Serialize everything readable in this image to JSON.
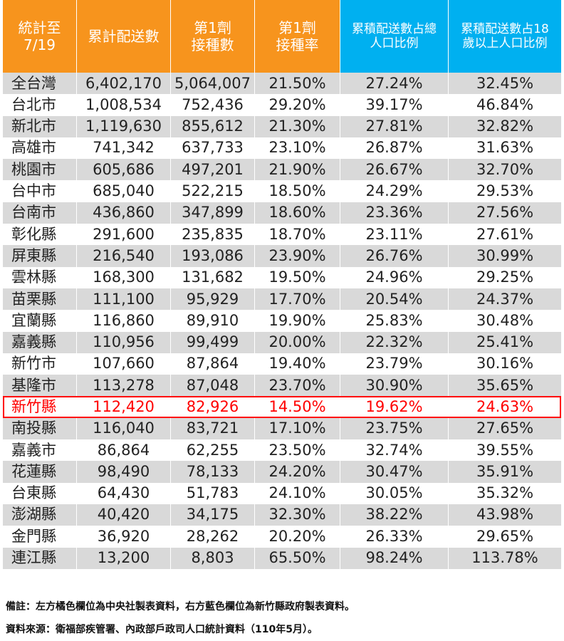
{
  "table": {
    "header": [
      "統計至\n7/19",
      "累計配送數",
      "第1劑\n接種數",
      "第1劑\n接種率",
      "累積配送數占總\n人口比例",
      "累積配送數占18\n歲以上人口比例"
    ],
    "rows": [
      [
        "全台灣",
        "6,402,170",
        "5,064,007",
        "21.50%",
        "27.24%",
        "32.45%"
      ],
      [
        "台北市",
        "1,008,534",
        "752,436",
        "29.20%",
        "39.17%",
        "46.84%"
      ],
      [
        "新北市",
        "1,119,630",
        "855,612",
        "21.30%",
        "27.81%",
        "32.82%"
      ],
      [
        "高雄市",
        "741,342",
        "637,733",
        "23.10%",
        "26.87%",
        "31.63%"
      ],
      [
        "桃園市",
        "605,686",
        "497,201",
        "21.90%",
        "26.67%",
        "32.70%"
      ],
      [
        "台中市",
        "685,040",
        "522,215",
        "18.50%",
        "24.29%",
        "29.53%"
      ],
      [
        "台南市",
        "436,860",
        "347,899",
        "18.60%",
        "23.36%",
        "27.56%"
      ],
      [
        "彰化縣",
        "291,600",
        "235,835",
        "18.70%",
        "23.11%",
        "27.61%"
      ],
      [
        "屏東縣",
        "216,540",
        "193,086",
        "23.90%",
        "26.76%",
        "30.99%"
      ],
      [
        "雲林縣",
        "168,300",
        "131,682",
        "19.50%",
        "24.96%",
        "29.25%"
      ],
      [
        "苗栗縣",
        "111,100",
        "95,929",
        "17.70%",
        "20.54%",
        "24.37%"
      ],
      [
        "宜蘭縣",
        "116,860",
        "89,910",
        "19.90%",
        "25.83%",
        "30.48%"
      ],
      [
        "嘉義縣",
        "110,956",
        "99,499",
        "20.00%",
        "22.32%",
        "25.41%"
      ],
      [
        "新竹市",
        "107,660",
        "87,864",
        "19.40%",
        "23.79%",
        "30.16%"
      ],
      [
        "基隆市",
        "113,278",
        "87,048",
        "23.70%",
        "30.90%",
        "35.65%"
      ],
      [
        "新竹縣",
        "112,420",
        "82,926",
        "14.50%",
        "19.62%",
        "24.63%"
      ],
      [
        "南投縣",
        "116,040",
        "83,721",
        "17.10%",
        "23.75%",
        "27.65%"
      ],
      [
        "嘉義市",
        "86,864",
        "62,255",
        "23.50%",
        "32.74%",
        "39.55%"
      ],
      [
        "花蓮縣",
        "98,490",
        "78,133",
        "24.20%",
        "30.47%",
        "35.91%"
      ],
      [
        "台東縣",
        "64,430",
        "51,783",
        "24.10%",
        "30.05%",
        "35.32%"
      ],
      [
        "澎湖縣",
        "40,420",
        "34,175",
        "32.30%",
        "38.22%",
        "43.98%"
      ],
      [
        "金門縣",
        "36,920",
        "28,262",
        "20.20%",
        "26.33%",
        "29.65%"
      ],
      [
        "連江縣",
        "13,200",
        "8,803",
        "65.50%",
        "98.24%",
        "113.78%"
      ]
    ],
    "highlighted_row": 15,
    "highlight_color": "#ff0000"
  },
  "notes": [
    "備註：左方橘色欄位為中央社製表資料，右方藍色欄位為新竹縣政府製表資料。",
    "資料來源：衛福部疾管署、內政部戶政司人口統計資料（110年5月）。"
  ]
}
